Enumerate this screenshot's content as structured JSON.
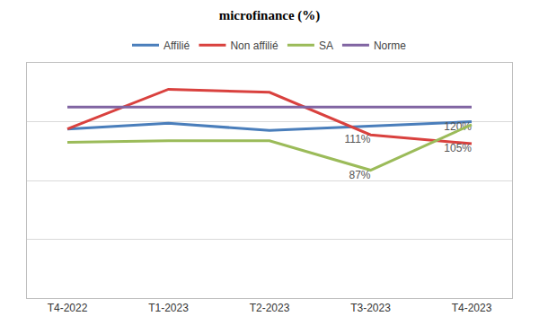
{
  "chart_data": {
    "type": "line",
    "title": "microfinance (%)",
    "categories": [
      "T4-2022",
      "T1-2023",
      "T2-2023",
      "T3-2023",
      "T4-2023"
    ],
    "series": [
      {
        "name": "Affilié",
        "color": "#4a7ebb",
        "values": [
          115,
          119,
          114,
          117,
          120
        ],
        "value_labels": [
          null,
          null,
          null,
          null,
          "120%"
        ]
      },
      {
        "name": "Non affilié",
        "color": "#d9413e",
        "values": [
          115,
          142,
          140,
          111,
          105
        ],
        "value_labels": [
          null,
          null,
          null,
          "111%",
          "105%"
        ]
      },
      {
        "name": "SA",
        "color": "#9bbb59",
        "values": [
          106,
          107,
          107,
          87,
          118
        ],
        "value_labels": [
          null,
          null,
          null,
          "87%",
          null
        ]
      },
      {
        "name": "Norme",
        "color": "#8064a2",
        "values": [
          130,
          130,
          130,
          130,
          130
        ],
        "value_labels": [
          null,
          null,
          null,
          null,
          null
        ]
      }
    ],
    "ylim": [
      0,
      160
    ],
    "yticks": [
      0,
      40,
      80,
      120,
      160
    ],
    "grid": true,
    "legend": "top",
    "data_labels": true,
    "tick_labels": "x"
  }
}
